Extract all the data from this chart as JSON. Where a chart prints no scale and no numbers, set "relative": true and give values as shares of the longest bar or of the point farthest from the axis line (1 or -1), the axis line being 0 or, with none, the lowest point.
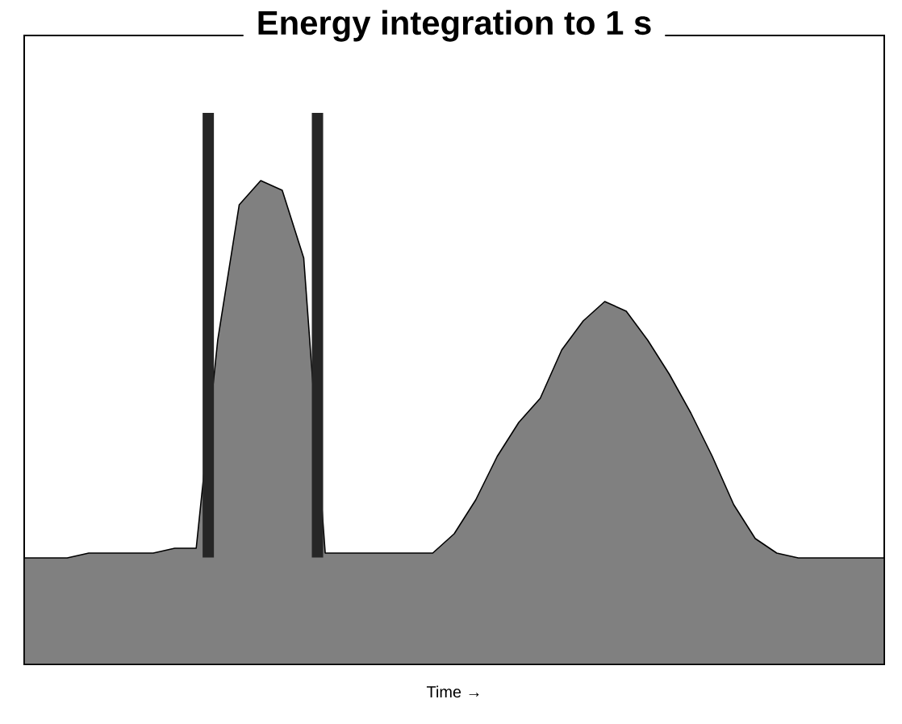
{
  "chart_data": {
    "type": "area",
    "title": "Energy integration to 1 s",
    "xlabel": "Time →",
    "relative": true,
    "color": "#808080",
    "categories": [
      null,
      null,
      null,
      null,
      null,
      null,
      null,
      null,
      null,
      null,
      null,
      null,
      null,
      null,
      null,
      null,
      null,
      null,
      null,
      null,
      null,
      null,
      null,
      null,
      null,
      null,
      null,
      null,
      null,
      null,
      null,
      null,
      null,
      null,
      null,
      null,
      null,
      null,
      null,
      null,
      null
    ],
    "values": [
      0.22,
      0.22,
      0.22,
      0.23,
      0.23,
      0.23,
      0.23,
      0.24,
      0.24,
      0.67,
      0.95,
      1.0,
      0.98,
      0.84,
      0.23,
      0.23,
      0.23,
      0.23,
      0.23,
      0.23,
      0.27,
      0.34,
      0.43,
      0.5,
      0.55,
      0.65,
      0.71,
      0.75,
      0.73,
      0.67,
      0.6,
      0.52,
      0.43,
      0.33,
      0.26,
      0.23,
      0.22,
      0.22,
      0.22,
      0.22,
      0.22
    ]
  }
}
